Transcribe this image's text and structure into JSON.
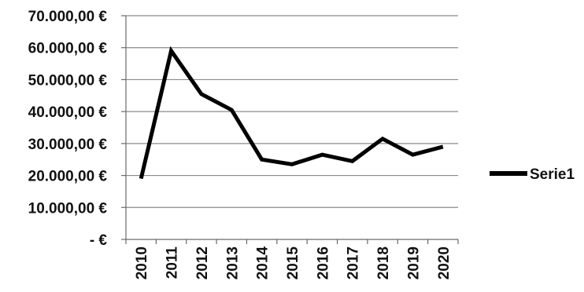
{
  "chart_data": {
    "type": "line",
    "categories": [
      "2010",
      "2011",
      "2012",
      "2013",
      "2014",
      "2015",
      "2016",
      "2017",
      "2018",
      "2019",
      "2020"
    ],
    "series": [
      {
        "name": "Serie1",
        "values": [
          19000,
          59000,
          45500,
          40500,
          25000,
          23500,
          26500,
          24500,
          31500,
          26500,
          29000
        ]
      }
    ],
    "ylim": [
      0,
      70000
    ],
    "yticks": [
      0,
      10000,
      20000,
      30000,
      40000,
      50000,
      60000,
      70000
    ],
    "ytick_labels": [
      "-  €",
      "10.000,00 €",
      "20.000,00 €",
      "30.000,00 €",
      "40.000,00 €",
      "50.000,00 €",
      "60.000,00 €",
      "70.000,00 €"
    ],
    "grid": true,
    "legend": "right",
    "colors": {
      "line": "#000000",
      "grid": "#8a8a8a",
      "axis": "#6a6a6a",
      "text": "#111111"
    }
  }
}
